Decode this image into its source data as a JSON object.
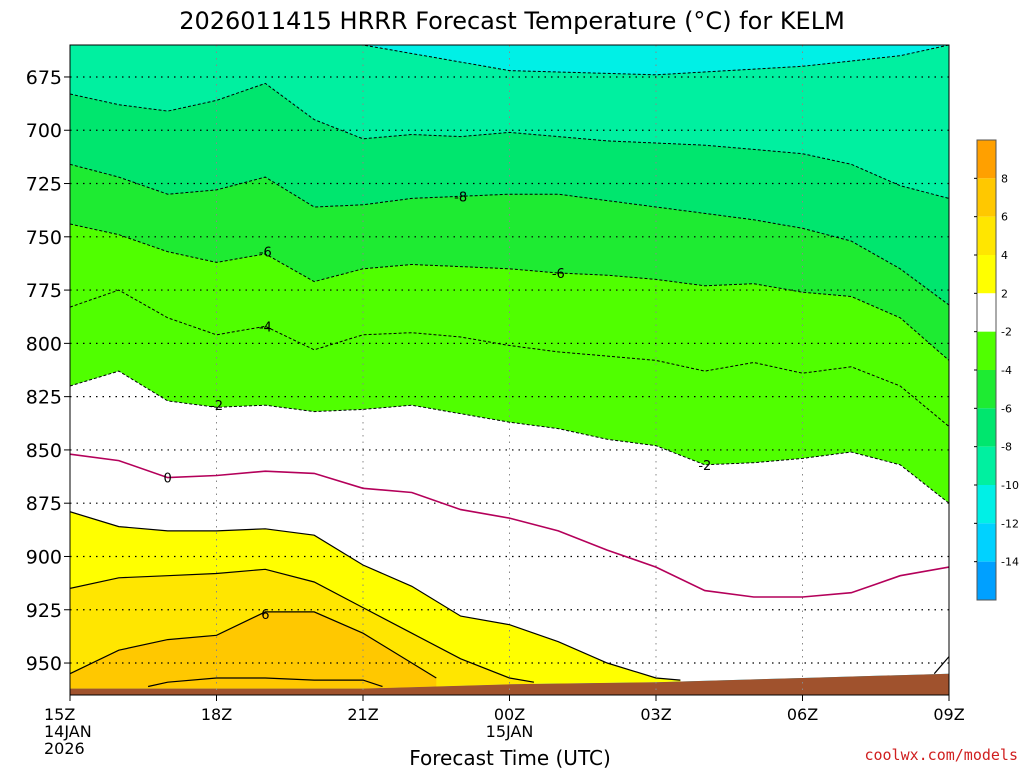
{
  "chart_data": {
    "type": "contour",
    "title": "2026011415 HRRR Forecast Temperature (°C) for KELM",
    "xlabel": "Forecast Time (UTC)",
    "ylabel": "",
    "watermark": "coolwx.com/models",
    "x_range": [
      "15Z 14JAN 2026",
      "09Z 15JAN 2026"
    ],
    "y_range": [
      965,
      660
    ],
    "y_ticks": [
      {
        "value": 675,
        "label": "675"
      },
      {
        "value": 700,
        "label": "700"
      },
      {
        "value": 725,
        "label": "725"
      },
      {
        "value": 750,
        "label": "750"
      },
      {
        "value": 775,
        "label": "775"
      },
      {
        "value": 800,
        "label": "800"
      },
      {
        "value": 825,
        "label": "825"
      },
      {
        "value": 850,
        "label": "850"
      },
      {
        "value": 875,
        "label": "875"
      },
      {
        "value": 900,
        "label": "900"
      },
      {
        "value": 925,
        "label": "925"
      },
      {
        "value": 950,
        "label": "950"
      }
    ],
    "x_ticks": [
      {
        "hour": 0,
        "lines": [
          "15Z",
          "14JAN",
          "2026"
        ]
      },
      {
        "hour": 3,
        "lines": [
          "18Z"
        ]
      },
      {
        "hour": 6,
        "lines": [
          "21Z"
        ]
      },
      {
        "hour": 9,
        "lines": [
          "00Z",
          "15JAN"
        ]
      },
      {
        "hour": 12,
        "lines": [
          "03Z"
        ]
      },
      {
        "hour": 15,
        "lines": [
          "06Z"
        ]
      },
      {
        "hour": 18,
        "lines": [
          "09Z"
        ]
      }
    ],
    "colorbar": {
      "bins": [
        {
          "color": "#00a0ff",
          "range": [
            -16,
            -14
          ]
        },
        {
          "color": "#00d2ff",
          "range": [
            -14,
            -12
          ]
        },
        {
          "color": "#00f0e6",
          "range": [
            -12,
            -10
          ]
        },
        {
          "color": "#00f0a0",
          "range": [
            -10,
            -8
          ]
        },
        {
          "color": "#00e66e",
          "range": [
            -8,
            -6
          ]
        },
        {
          "color": "#1eeb32",
          "range": [
            -6,
            -4
          ]
        },
        {
          "color": "#50ff00",
          "range": [
            -4,
            -2
          ]
        },
        {
          "color": "#ffffff",
          "range": [
            -2,
            2
          ]
        },
        {
          "color": "#ffff00",
          "range": [
            2,
            4
          ]
        },
        {
          "color": "#ffe600",
          "range": [
            4,
            6
          ]
        },
        {
          "color": "#ffc800",
          "range": [
            6,
            8
          ]
        },
        {
          "color": "#ffa000",
          "range": [
            8,
            10
          ]
        }
      ],
      "labels": [
        "-14",
        "-12",
        "-10",
        "-8",
        "-6",
        "-4",
        "-2",
        "2",
        "4",
        "6",
        "8"
      ]
    },
    "ground_color": "#a0522d",
    "ground_pressure": [
      [
        0,
        962
      ],
      [
        6,
        962
      ],
      [
        9,
        960
      ],
      [
        12,
        959
      ],
      [
        15,
        957
      ],
      [
        18,
        955
      ]
    ],
    "regions": [
      {
        "color": "#00f0e6",
        "upper": "top",
        "lower": "m12"
      },
      {
        "color": "#00f0a0",
        "upper": "m12",
        "lower": "m10"
      },
      {
        "color": "#00e66e",
        "upper": "m10",
        "lower": "m8"
      },
      {
        "color": "#1eeb32",
        "upper": "m8",
        "lower": "m6"
      },
      {
        "color": "#50ff00",
        "upper": "m6",
        "lower": "m2"
      },
      {
        "color": "#ffffff",
        "upper": "m2",
        "lower": "ground"
      },
      {
        "color": "#ffff00",
        "upper": "p2",
        "lower": "ground"
      },
      {
        "color": "#ffe600",
        "upper": "p4",
        "lower": "ground"
      },
      {
        "color": "#ffc800",
        "upper": "p6",
        "lower": "ground"
      }
    ],
    "isotherms": {
      "m12": {
        "value": -12,
        "points": [
          [
            0,
            660
          ],
          [
            6,
            660
          ],
          [
            9,
            672
          ],
          [
            12,
            674
          ],
          [
            15,
            670
          ],
          [
            17,
            665
          ],
          [
            18,
            660
          ]
        ]
      },
      "m10": {
        "value": -10,
        "points": [
          [
            0,
            683
          ],
          [
            1,
            688
          ],
          [
            2,
            691
          ],
          [
            3,
            686
          ],
          [
            4,
            678
          ],
          [
            5,
            695
          ],
          [
            6,
            704
          ],
          [
            7,
            702
          ],
          [
            8,
            703
          ],
          [
            9,
            701
          ],
          [
            10,
            703
          ],
          [
            11,
            705
          ],
          [
            12,
            706
          ],
          [
            13,
            707
          ],
          [
            14,
            709
          ],
          [
            15,
            711
          ],
          [
            16,
            716
          ],
          [
            17,
            726
          ],
          [
            18,
            732
          ]
        ]
      },
      "m8": {
        "value": -8,
        "points": [
          [
            0,
            716
          ],
          [
            1,
            722
          ],
          [
            2,
            730
          ],
          [
            3,
            728
          ],
          [
            4,
            722
          ],
          [
            5,
            736
          ],
          [
            6,
            735
          ],
          [
            7,
            732
          ],
          [
            8,
            731
          ],
          [
            9,
            730
          ],
          [
            10,
            730
          ],
          [
            11,
            733
          ],
          [
            12,
            736
          ],
          [
            13,
            739
          ],
          [
            14,
            742
          ],
          [
            15,
            746
          ],
          [
            16,
            752
          ],
          [
            17,
            765
          ],
          [
            18,
            782
          ]
        ]
      },
      "m6": {
        "value": -6,
        "points": [
          [
            0,
            744
          ],
          [
            1,
            749
          ],
          [
            2,
            757
          ],
          [
            3,
            762
          ],
          [
            4,
            758
          ],
          [
            5,
            771
          ],
          [
            6,
            765
          ],
          [
            7,
            763
          ],
          [
            8,
            764
          ],
          [
            9,
            765
          ],
          [
            10,
            767
          ],
          [
            11,
            768
          ],
          [
            12,
            770
          ],
          [
            13,
            773
          ],
          [
            14,
            772
          ],
          [
            15,
            776
          ],
          [
            16,
            778
          ],
          [
            17,
            788
          ],
          [
            18,
            808
          ]
        ]
      },
      "m4": {
        "value": -4,
        "points": [
          [
            0,
            783
          ],
          [
            1,
            775
          ],
          [
            2,
            788
          ],
          [
            3,
            796
          ],
          [
            4,
            792
          ],
          [
            5,
            803
          ],
          [
            6,
            796
          ],
          [
            7,
            795
          ],
          [
            8,
            797
          ],
          [
            9,
            801
          ],
          [
            10,
            804
          ],
          [
            11,
            806
          ],
          [
            12,
            808
          ],
          [
            13,
            813
          ],
          [
            14,
            809
          ],
          [
            15,
            814
          ],
          [
            16,
            811
          ],
          [
            17,
            820
          ],
          [
            18,
            839
          ]
        ]
      },
      "m2": {
        "value": -2,
        "points": [
          [
            0,
            820
          ],
          [
            1,
            813
          ],
          [
            2,
            827
          ],
          [
            3,
            830
          ],
          [
            4,
            829
          ],
          [
            5,
            832
          ],
          [
            6,
            831
          ],
          [
            7,
            829
          ],
          [
            8,
            833
          ],
          [
            9,
            837
          ],
          [
            10,
            840
          ],
          [
            11,
            845
          ],
          [
            12,
            848
          ],
          [
            13,
            857
          ],
          [
            14,
            856
          ],
          [
            15,
            854
          ],
          [
            16,
            851
          ],
          [
            17,
            857
          ],
          [
            18,
            875
          ]
        ]
      },
      "z0": {
        "value": 0,
        "points": [
          [
            0,
            852
          ],
          [
            1,
            855
          ],
          [
            2,
            863
          ],
          [
            3,
            862
          ],
          [
            4,
            860
          ],
          [
            5,
            861
          ],
          [
            6,
            868
          ],
          [
            7,
            870
          ],
          [
            8,
            878
          ],
          [
            9,
            882
          ],
          [
            10,
            888
          ],
          [
            11,
            897
          ],
          [
            12,
            905
          ],
          [
            13,
            916
          ],
          [
            14,
            919
          ],
          [
            15,
            919
          ],
          [
            16,
            917
          ],
          [
            16.5,
            913
          ],
          [
            17,
            909
          ],
          [
            18,
            905
          ]
        ]
      },
      "p2": {
        "value": 2,
        "points": [
          [
            0,
            879
          ],
          [
            1,
            886
          ],
          [
            2,
            888
          ],
          [
            3,
            888
          ],
          [
            4,
            887
          ],
          [
            5,
            890
          ],
          [
            6,
            904
          ],
          [
            7,
            914
          ],
          [
            8,
            928
          ],
          [
            9,
            932
          ],
          [
            10,
            940
          ],
          [
            11,
            950
          ],
          [
            12,
            957
          ],
          [
            12.5,
            958
          ]
        ]
      },
      "p4": {
        "value": 4,
        "points": [
          [
            0,
            915
          ],
          [
            1,
            910
          ],
          [
            2,
            909
          ],
          [
            3,
            908
          ],
          [
            4,
            906
          ],
          [
            5,
            912
          ],
          [
            6,
            924
          ],
          [
            7,
            936
          ],
          [
            8,
            948
          ],
          [
            9,
            957
          ],
          [
            9.5,
            959
          ]
        ]
      },
      "p6": {
        "value": 6,
        "points": [
          [
            0,
            955
          ],
          [
            1,
            944
          ],
          [
            2,
            939
          ],
          [
            3,
            937
          ],
          [
            4,
            926
          ],
          [
            5,
            926
          ],
          [
            6,
            936
          ],
          [
            7,
            950
          ],
          [
            7.5,
            957
          ]
        ]
      },
      "p8": {
        "value": 8,
        "points": [
          [
            1.6,
            961
          ],
          [
            2,
            959
          ],
          [
            3,
            957
          ],
          [
            4,
            957
          ],
          [
            5,
            958
          ],
          [
            6,
            958
          ],
          [
            6.4,
            961
          ]
        ]
      },
      "p2b": {
        "value": 2,
        "points": [
          [
            17.7,
            955
          ],
          [
            18,
            947
          ]
        ]
      }
    },
    "contour_labels": [
      {
        "text": "-8",
        "hour": 8,
        "p": 731
      },
      {
        "text": "-6",
        "hour": 4,
        "p": 757
      },
      {
        "text": "-6",
        "hour": 10,
        "p": 767
      },
      {
        "text": "-4",
        "hour": 4,
        "p": 792
      },
      {
        "text": "-2",
        "hour": 3,
        "p": 829
      },
      {
        "text": "-2",
        "hour": 13,
        "p": 857
      },
      {
        "text": "0",
        "hour": 2,
        "p": 863
      },
      {
        "text": "6",
        "hour": 4,
        "p": 927
      }
    ]
  }
}
